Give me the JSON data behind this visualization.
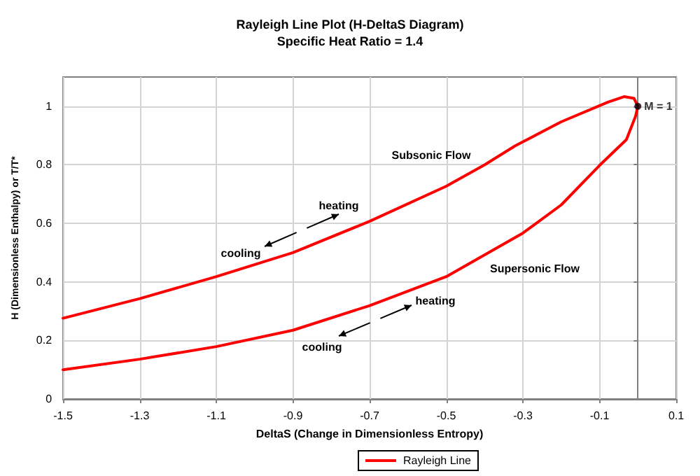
{
  "chart_data": {
    "type": "line",
    "title": "Rayleigh Line Plot (H-DeltaS Diagram)",
    "subtitle": "Specific Heat Ratio = 1.4",
    "xlabel": "DeltaS (Change in Dimensionless Entropy)",
    "ylabel": "H (Dimensionless Enthalpy) or T/T*",
    "xlim": [
      -1.5,
      0.1
    ],
    "xticks": [
      -1.5,
      -1.3,
      -1.1,
      -0.9,
      -0.7,
      -0.5,
      -0.3,
      -0.1,
      0.1
    ],
    "ylim": [
      0,
      1.1
    ],
    "yticks": [
      0,
      0.2,
      0.4,
      0.6,
      0.8,
      1
    ],
    "grid": true,
    "legend": "bottom",
    "marker": "none",
    "line_style": "solid",
    "series": [
      {
        "name": "Rayleigh Line",
        "color": "#ff0000",
        "x": [
          -1.5,
          -1.3,
          -1.1,
          -0.9,
          -0.7,
          -0.5,
          -0.3,
          -0.2,
          -0.1,
          -0.03,
          -0.006,
          0,
          -0.01,
          -0.036,
          -0.078,
          -0.2,
          -0.32,
          -0.4,
          -0.5,
          -0.7,
          -0.9,
          -1.1,
          -1.3,
          -1.5
        ],
        "values": [
          0.1,
          0.136,
          0.179,
          0.235,
          0.319,
          0.418,
          0.567,
          0.663,
          0.798,
          0.886,
          0.966,
          1,
          1.027,
          1.033,
          1.014,
          0.947,
          0.865,
          0.8,
          0.727,
          0.607,
          0.5,
          0.418,
          0.343,
          0.276
        ]
      },
      {
        "type": "scatter",
        "color": "#000000",
        "marker": "circle",
        "x": [
          0
        ],
        "values": [
          1
        ],
        "value_labels": [
          "M = 1"
        ]
      }
    ],
    "annotations": [
      "Subsonic Flow",
      "Supersonic Flow",
      "heating",
      "cooling",
      "heating",
      "cooling"
    ]
  }
}
